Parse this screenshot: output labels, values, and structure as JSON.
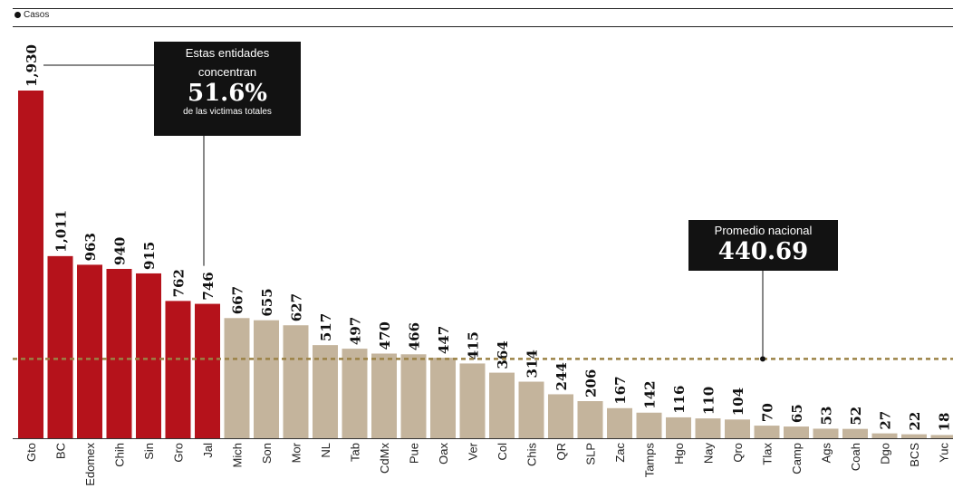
{
  "legend": {
    "label": "Casos"
  },
  "callout_top": {
    "line1": "Estas entidades",
    "line2": "concentran",
    "value": "51.6%",
    "line3": "de las victimas totales"
  },
  "callout_avg": {
    "line1": "Promedio nacional",
    "value": "440.69"
  },
  "colors": {
    "highlight": "#b5121b",
    "normal": "#c4b49c",
    "average_line": "#9b8246"
  },
  "chart_data": {
    "type": "bar",
    "categories": [
      "Gto",
      "BC",
      "Edomex",
      "Chih",
      "Sin",
      "Gro",
      "Jal",
      "Mich",
      "Son",
      "Mor",
      "NL",
      "Tab",
      "CdMx",
      "Pue",
      "Oax",
      "Ver",
      "Col",
      "Chis",
      "QR",
      "SLP",
      "Zac",
      "Tamps",
      "Hgo",
      "Nay",
      "Qro",
      "Tlax",
      "Camp",
      "Ags",
      "Coah",
      "Dgo",
      "BCS",
      "Yuc"
    ],
    "values": [
      1930,
      1011,
      963,
      940,
      915,
      762,
      746,
      667,
      655,
      627,
      517,
      497,
      470,
      466,
      447,
      415,
      364,
      314,
      244,
      206,
      167,
      142,
      116,
      110,
      104,
      70,
      65,
      53,
      52,
      27,
      22,
      18
    ],
    "value_labels": [
      "1,930",
      "1,011",
      "963",
      "940",
      "915",
      "762",
      "746",
      "667",
      "655",
      "627",
      "517",
      "497",
      "470",
      "466",
      "447",
      "415",
      "364",
      "314",
      "244",
      "206",
      "167",
      "142",
      "116",
      "110",
      "104",
      "70",
      "65",
      "53",
      "52",
      "27",
      "22",
      "18"
    ],
    "highlighted_count": 7,
    "average": 440.69,
    "legend": [
      "Casos"
    ],
    "ylim": [
      0,
      2000
    ]
  }
}
